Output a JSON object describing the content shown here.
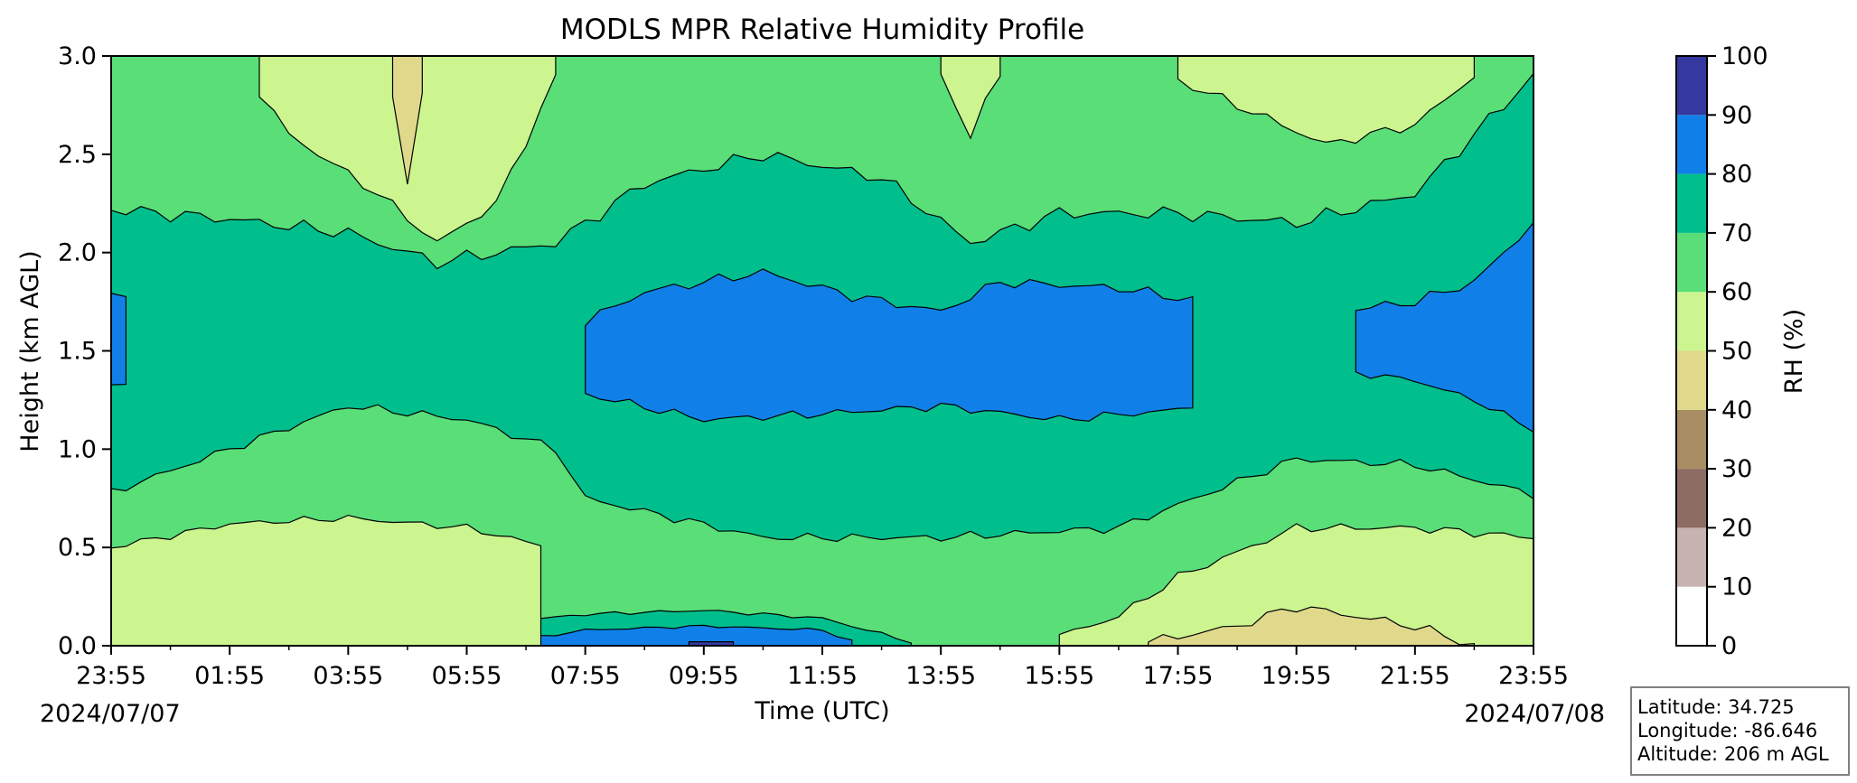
{
  "chart_data": {
    "type": "heatmap",
    "title": "MODLS MPR Relative Humidity Profile",
    "xlabel": "Time (UTC)",
    "ylabel": "Height (km AGL)",
    "x_range": [
      "2024-07-07 23:55",
      "2024-07-08 23:55"
    ],
    "ylim": [
      0.0,
      3.0
    ],
    "x_ticks": [
      "23:55",
      "01:55",
      "03:55",
      "05:55",
      "07:55",
      "09:55",
      "11:55",
      "13:55",
      "15:55",
      "17:55",
      "19:55",
      "21:55",
      "23:55"
    ],
    "x_tick_values_hours": [
      0,
      2,
      4,
      6,
      8,
      10,
      12,
      14,
      16,
      18,
      20,
      22,
      24
    ],
    "y_ticks": [
      "0.0",
      "0.5",
      "1.0",
      "1.5",
      "2.0",
      "2.5",
      "3.0"
    ],
    "y_tick_values": [
      0.0,
      0.5,
      1.0,
      1.5,
      2.0,
      2.5,
      3.0
    ],
    "start_date": "2024/07/07",
    "end_date": "2024/07/08",
    "colorbar": {
      "label": "RH (%)",
      "levels": [
        0,
        10,
        20,
        30,
        40,
        50,
        60,
        70,
        80,
        90,
        100
      ],
      "tick_labels": [
        "0",
        "10",
        "20",
        "30",
        "40",
        "50",
        "60",
        "70",
        "80",
        "90",
        "100"
      ],
      "colors": [
        "#ffffff",
        "#c7b4b0",
        "#8d6c63",
        "#a88c62",
        "#e0d98c",
        "#ccf590",
        "#59de78",
        "#00bf8c",
        "#1080e8",
        "#35399f"
      ]
    }
  },
  "info_box": {
    "latitude": "Latitude: 34.725",
    "longitude": "Longitude: -86.646",
    "altitude": "Altitude: 206 m AGL"
  }
}
